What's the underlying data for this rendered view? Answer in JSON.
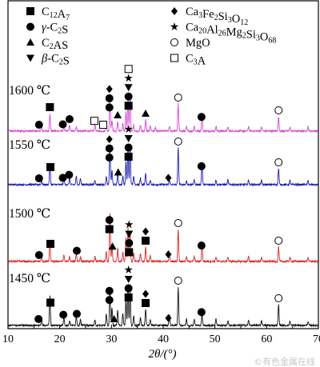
{
  "chart_data": {
    "type": "line",
    "xlabel": "2θ/(°)",
    "xlim": [
      10,
      70
    ],
    "x_ticks": [
      10,
      20,
      30,
      40,
      50,
      60,
      70
    ],
    "x_tick_labels": [
      "10",
      "20",
      "30",
      "40",
      "50",
      "60",
      "70"
    ],
    "series": [
      {
        "name": "1600 ℃",
        "color": "#d54bd5",
        "peaks": [
          {
            "x": 16.5,
            "h": 6
          },
          {
            "x": 18.1,
            "h": 22
          },
          {
            "x": 20.8,
            "h": 6
          },
          {
            "x": 21.9,
            "h": 7
          },
          {
            "x": 23.2,
            "h": 6
          },
          {
            "x": 26.8,
            "h": 9
          },
          {
            "x": 29.0,
            "h": 8
          },
          {
            "x": 29.7,
            "h": 40
          },
          {
            "x": 30.1,
            "h": 14
          },
          {
            "x": 31.2,
            "h": 12
          },
          {
            "x": 32.2,
            "h": 10
          },
          {
            "x": 32.8,
            "h": 24
          },
          {
            "x": 33.2,
            "h": 44
          },
          {
            "x": 33.6,
            "h": 46
          },
          {
            "x": 34.3,
            "h": 8
          },
          {
            "x": 35.6,
            "h": 7
          },
          {
            "x": 36.6,
            "h": 14
          },
          {
            "x": 37.5,
            "h": 6
          },
          {
            "x": 38.5,
            "h": 5
          },
          {
            "x": 41.2,
            "h": 6
          },
          {
            "x": 42.9,
            "h": 34
          },
          {
            "x": 44.5,
            "h": 5
          },
          {
            "x": 46.0,
            "h": 6
          },
          {
            "x": 47.5,
            "h": 18
          },
          {
            "x": 50.2,
            "h": 6
          },
          {
            "x": 52.5,
            "h": 5
          },
          {
            "x": 56.5,
            "h": 6
          },
          {
            "x": 59.0,
            "h": 5
          },
          {
            "x": 62.3,
            "h": 18
          },
          {
            "x": 64.5,
            "h": 5
          },
          {
            "x": 68.0,
            "h": 5
          }
        ],
        "markers": [
          {
            "x": 18.1,
            "symbols": [
              "square"
            ]
          },
          {
            "x": 16.0,
            "symbols": [
              "circle"
            ]
          },
          {
            "x": 20.6,
            "symbols": [
              "circle"
            ]
          },
          {
            "x": 21.9,
            "symbols": [
              "circle"
            ]
          },
          {
            "x": 26.7,
            "symbols": [
              "open-square"
            ]
          },
          {
            "x": 28.4,
            "symbols": [
              "open-square"
            ]
          },
          {
            "x": 29.6,
            "symbols": [
              "diamond",
              "circle",
              "circle"
            ]
          },
          {
            "x": 31.2,
            "symbols": [
              "triangle"
            ]
          },
          {
            "x": 33.3,
            "symbols": [
              "open-square",
              "star",
              "inv-triangle",
              "circle",
              "square"
            ]
          },
          {
            "x": 36.6,
            "symbols": [
              "triangle"
            ]
          },
          {
            "x": 42.9,
            "symbols": [
              "open-circle"
            ]
          },
          {
            "x": 47.4,
            "symbols": [
              "circle"
            ]
          },
          {
            "x": 62.3,
            "symbols": [
              "open-circle"
            ]
          }
        ]
      },
      {
        "name": "1550 ℃",
        "color": "#1c1cb4",
        "peaks": [
          {
            "x": 16.5,
            "h": 6
          },
          {
            "x": 18.1,
            "h": 26
          },
          {
            "x": 20.8,
            "h": 7
          },
          {
            "x": 21.9,
            "h": 8
          },
          {
            "x": 23.2,
            "h": 10
          },
          {
            "x": 24.0,
            "h": 8
          },
          {
            "x": 26.8,
            "h": 6
          },
          {
            "x": 29.0,
            "h": 10
          },
          {
            "x": 29.7,
            "h": 48
          },
          {
            "x": 30.1,
            "h": 18
          },
          {
            "x": 31.2,
            "h": 14
          },
          {
            "x": 32.2,
            "h": 10
          },
          {
            "x": 32.8,
            "h": 30
          },
          {
            "x": 33.2,
            "h": 50
          },
          {
            "x": 33.6,
            "h": 46
          },
          {
            "x": 34.3,
            "h": 10
          },
          {
            "x": 35.6,
            "h": 8
          },
          {
            "x": 36.6,
            "h": 14
          },
          {
            "x": 37.5,
            "h": 6
          },
          {
            "x": 41.2,
            "h": 7
          },
          {
            "x": 42.9,
            "h": 46
          },
          {
            "x": 44.5,
            "h": 5
          },
          {
            "x": 46.0,
            "h": 6
          },
          {
            "x": 47.5,
            "h": 28
          },
          {
            "x": 50.2,
            "h": 6
          },
          {
            "x": 52.5,
            "h": 6
          },
          {
            "x": 56.5,
            "h": 6
          },
          {
            "x": 59.0,
            "h": 5
          },
          {
            "x": 62.3,
            "h": 20
          },
          {
            "x": 64.5,
            "h": 5
          },
          {
            "x": 68.0,
            "h": 5
          }
        ],
        "markers": [
          {
            "x": 18.2,
            "symbols": [
              "square"
            ]
          },
          {
            "x": 16.0,
            "symbols": [
              "circle"
            ]
          },
          {
            "x": 20.6,
            "symbols": [
              "circle"
            ]
          },
          {
            "x": 21.8,
            "symbols": [
              "circle"
            ]
          },
          {
            "x": 29.6,
            "symbols": [
              "diamond",
              "circle",
              "circle"
            ]
          },
          {
            "x": 31.3,
            "symbols": [
              "triangle"
            ]
          },
          {
            "x": 33.3,
            "symbols": [
              "star",
              "inv-triangle",
              "circle",
              "square"
            ]
          },
          {
            "x": 41.0,
            "symbols": [
              "diamond"
            ]
          },
          {
            "x": 42.9,
            "symbols": [
              "open-circle"
            ]
          },
          {
            "x": 47.4,
            "symbols": [
              "circle"
            ]
          },
          {
            "x": 62.3,
            "symbols": [
              "open-circle"
            ]
          }
        ]
      },
      {
        "name": "1500 ℃",
        "color": "#d82828",
        "peaks": [
          {
            "x": 16.5,
            "h": 6
          },
          {
            "x": 18.1,
            "h": 26
          },
          {
            "x": 20.8,
            "h": 8
          },
          {
            "x": 21.9,
            "h": 6
          },
          {
            "x": 23.2,
            "h": 10
          },
          {
            "x": 24.0,
            "h": 6
          },
          {
            "x": 26.8,
            "h": 6
          },
          {
            "x": 29.0,
            "h": 12
          },
          {
            "x": 29.7,
            "h": 60
          },
          {
            "x": 30.1,
            "h": 20
          },
          {
            "x": 31.2,
            "h": 16
          },
          {
            "x": 32.2,
            "h": 12
          },
          {
            "x": 32.8,
            "h": 30
          },
          {
            "x": 33.2,
            "h": 42
          },
          {
            "x": 33.6,
            "h": 36
          },
          {
            "x": 34.3,
            "h": 10
          },
          {
            "x": 35.6,
            "h": 10
          },
          {
            "x": 36.6,
            "h": 18
          },
          {
            "x": 37.5,
            "h": 8
          },
          {
            "x": 41.2,
            "h": 10
          },
          {
            "x": 42.9,
            "h": 40
          },
          {
            "x": 44.5,
            "h": 6
          },
          {
            "x": 46.0,
            "h": 6
          },
          {
            "x": 47.5,
            "h": 22
          },
          {
            "x": 50.2,
            "h": 6
          },
          {
            "x": 52.5,
            "h": 6
          },
          {
            "x": 56.5,
            "h": 6
          },
          {
            "x": 59.0,
            "h": 5
          },
          {
            "x": 62.3,
            "h": 18
          },
          {
            "x": 64.5,
            "h": 5
          },
          {
            "x": 68.0,
            "h": 5
          }
        ],
        "markers": [
          {
            "x": 18.2,
            "symbols": [
              "square"
            ]
          },
          {
            "x": 16.0,
            "symbols": [
              "circle"
            ]
          },
          {
            "x": 23.3,
            "symbols": [
              "circle"
            ]
          },
          {
            "x": 29.6,
            "symbols": [
              "circle",
              "square"
            ]
          },
          {
            "x": 30.2,
            "symbols": [
              "triangle"
            ]
          },
          {
            "x": 33.4,
            "symbols": [
              "star",
              "inv-triangle",
              "circle",
              "square"
            ]
          },
          {
            "x": 36.6,
            "symbols": [
              "diamond",
              "square"
            ]
          },
          {
            "x": 41.0,
            "symbols": [
              "diamond"
            ]
          },
          {
            "x": 42.9,
            "symbols": [
              "open-circle"
            ]
          },
          {
            "x": 47.4,
            "symbols": [
              "circle"
            ]
          },
          {
            "x": 62.3,
            "symbols": [
              "open-circle"
            ]
          }
        ]
      },
      {
        "name": "1450 ℃",
        "color": "#111111",
        "peaks": [
          {
            "x": 16.5,
            "h": 8
          },
          {
            "x": 18.1,
            "h": 38
          },
          {
            "x": 20.8,
            "h": 10
          },
          {
            "x": 21.9,
            "h": 6
          },
          {
            "x": 23.2,
            "h": 12
          },
          {
            "x": 24.0,
            "h": 8
          },
          {
            "x": 26.8,
            "h": 6
          },
          {
            "x": 29.0,
            "h": 14
          },
          {
            "x": 29.7,
            "h": 44
          },
          {
            "x": 30.1,
            "h": 22
          },
          {
            "x": 31.2,
            "h": 20
          },
          {
            "x": 32.2,
            "h": 14
          },
          {
            "x": 32.8,
            "h": 32
          },
          {
            "x": 33.2,
            "h": 50
          },
          {
            "x": 33.6,
            "h": 42
          },
          {
            "x": 34.3,
            "h": 12
          },
          {
            "x": 35.6,
            "h": 10
          },
          {
            "x": 36.6,
            "h": 20
          },
          {
            "x": 37.5,
            "h": 8
          },
          {
            "x": 41.2,
            "h": 14
          },
          {
            "x": 42.9,
            "h": 48
          },
          {
            "x": 44.5,
            "h": 8
          },
          {
            "x": 46.0,
            "h": 8
          },
          {
            "x": 47.5,
            "h": 16
          },
          {
            "x": 50.2,
            "h": 8
          },
          {
            "x": 52.5,
            "h": 6
          },
          {
            "x": 56.5,
            "h": 6
          },
          {
            "x": 59.0,
            "h": 6
          },
          {
            "x": 62.3,
            "h": 26
          },
          {
            "x": 64.5,
            "h": 5
          },
          {
            "x": 68.0,
            "h": 5
          }
        ],
        "markers": [
          {
            "x": 18.2,
            "symbols": [
              "square"
            ]
          },
          {
            "x": 15.9,
            "symbols": [
              "circle"
            ]
          },
          {
            "x": 20.7,
            "symbols": [
              "circle"
            ]
          },
          {
            "x": 23.3,
            "symbols": [
              "circle"
            ]
          },
          {
            "x": 29.6,
            "symbols": [
              "circle",
              "circle"
            ]
          },
          {
            "x": 30.5,
            "symbols": [
              "triangle"
            ]
          },
          {
            "x": 33.3,
            "symbols": [
              "star",
              "inv-triangle",
              "circle",
              "square"
            ]
          },
          {
            "x": 36.6,
            "symbols": [
              "diamond",
              "square"
            ]
          },
          {
            "x": 41.0,
            "symbols": [
              "diamond"
            ]
          },
          {
            "x": 42.9,
            "symbols": [
              "open-circle"
            ]
          },
          {
            "x": 47.4,
            "symbols": [
              "circle"
            ]
          },
          {
            "x": 62.3,
            "symbols": [
              "open-circle"
            ]
          }
        ]
      }
    ],
    "legend": [
      {
        "symbol": "square",
        "label": "C12A7",
        "col": 0
      },
      {
        "symbol": "circle",
        "label": "γ-C2S",
        "col": 0
      },
      {
        "symbol": "triangle",
        "label": "C2AS",
        "col": 0
      },
      {
        "symbol": "inv-triangle",
        "label": "β-C2S",
        "col": 0
      },
      {
        "symbol": "diamond",
        "label": "Ca3Fe2Si3O12",
        "col": 1
      },
      {
        "symbol": "star",
        "label": "Ca20Al26Mg2Si3O68",
        "col": 1
      },
      {
        "symbol": "open-circle",
        "label": "MgO",
        "col": 1
      },
      {
        "symbol": "open-square",
        "label": "C3A",
        "col": 1
      }
    ],
    "legend_placement": "top",
    "grid": false
  },
  "watermark": "©有色金属在线"
}
